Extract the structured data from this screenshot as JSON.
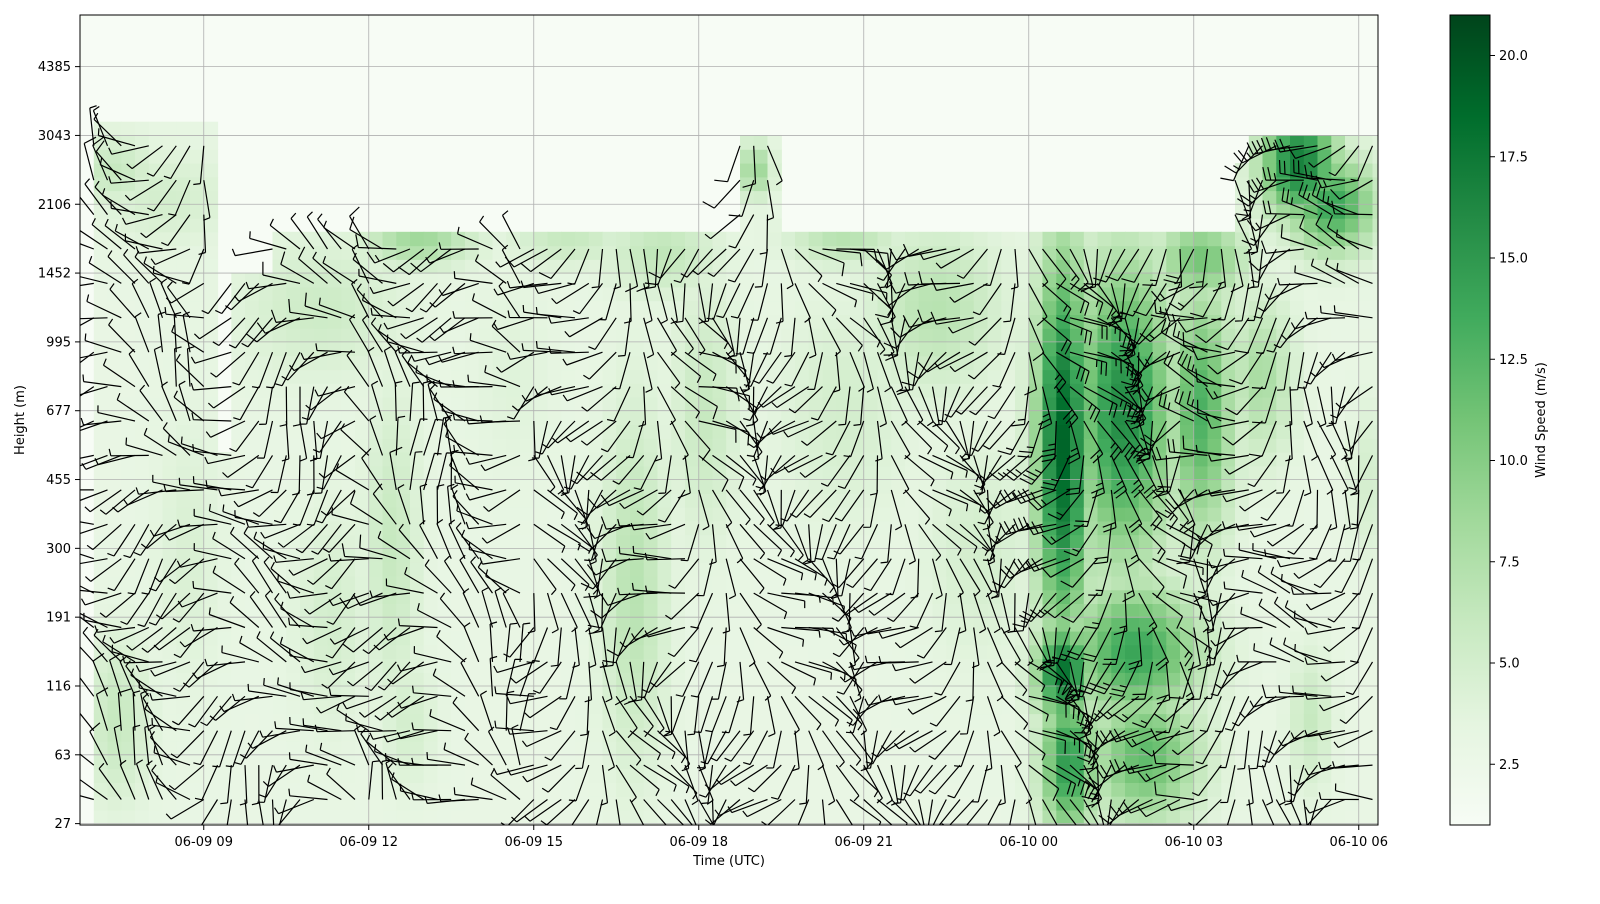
{
  "chart_data": {
    "type": "heatmap",
    "title": "",
    "xlabel": "Time (UTC)",
    "ylabel": "Height (m)",
    "x_ticks": [
      "06-09 09",
      "06-09 12",
      "06-09 15",
      "06-09 18",
      "06-09 21",
      "06-10 00",
      "06-10 03",
      "06-10 06"
    ],
    "x_tick_hours": [
      9,
      12,
      15,
      18,
      21,
      24,
      27,
      30
    ],
    "x_range_hours": [
      6.75,
      30.35
    ],
    "y_ticks": [
      "27",
      "63",
      "116",
      "191",
      "300",
      "455",
      "677",
      "995",
      "1452",
      "2106",
      "3043",
      "4385"
    ],
    "y_ticks_m": [
      27,
      63,
      116,
      191,
      300,
      455,
      677,
      995,
      1452,
      2106,
      3043,
      4385
    ],
    "y_range_index": [
      -0.02,
      11.75
    ],
    "grid": true,
    "colormap": "Greens",
    "colorbar": {
      "label": "Wind Speed (m/s)",
      "ticks": [
        "2.5",
        "5.0",
        "7.5",
        "10.0",
        "12.5",
        "15.0",
        "17.5",
        "20.0"
      ],
      "tick_values": [
        2.5,
        5.0,
        7.5,
        10.0,
        12.5,
        15.0,
        17.5,
        20.0
      ],
      "range": [
        1.0,
        21.0
      ]
    },
    "overlay": "wind barbs (direction and speed) at each time/height bin",
    "time_step_hours": 0.25,
    "wind_speed_field": {
      "data_top_index": [
        {
          "from": 6.75,
          "to": 9.1,
          "top": 10.1
        },
        {
          "from": 9.1,
          "to": 10.2,
          "top": 8.05
        },
        {
          "from": 10.2,
          "to": 18.6,
          "top": 8.65
        },
        {
          "from": 18.6,
          "to": 19.3,
          "top": 10.0
        },
        {
          "from": 19.3,
          "to": 27.6,
          "top": 8.65
        },
        {
          "from": 27.6,
          "to": 27.8,
          "top": 9.5
        },
        {
          "from": 27.8,
          "to": 30.3,
          "top": 10.05
        }
      ],
      "gaps": [
        {
          "from": 9.1,
          "to": 9.3,
          "bottom": 5.5,
          "top": 10.5
        },
        {
          "from": 27.4,
          "to": 27.5,
          "bottom": 5.5,
          "top": 8.9
        }
      ],
      "speed_blobs_ms": [
        {
          "t": 7.2,
          "h": 9.5,
          "spd": 6,
          "wt": 0.8,
          "wh": 0.5
        },
        {
          "t": 8.2,
          "h": 9.1,
          "spd": 5,
          "wt": 1.2,
          "wh": 0.7
        },
        {
          "t": 7.3,
          "h": 1.5,
          "spd": 6,
          "wt": 0.6,
          "wh": 1.2
        },
        {
          "t": 8.6,
          "h": 4.0,
          "spd": 4.5,
          "wt": 0.6,
          "wh": 2.0
        },
        {
          "t": 11.0,
          "h": 7.5,
          "spd": 5.5,
          "wt": 1.5,
          "wh": 1.0
        },
        {
          "t": 11.2,
          "h": 3.0,
          "spd": 5,
          "wt": 0.7,
          "wh": 1.6
        },
        {
          "t": 12.3,
          "h": 4.0,
          "spd": 6,
          "wt": 0.5,
          "wh": 2.2
        },
        {
          "t": 12.8,
          "h": 8.5,
          "spd": 8.5,
          "wt": 1.0,
          "wh": 0.4
        },
        {
          "t": 12.6,
          "h": 1.5,
          "spd": 5,
          "wt": 0.5,
          "wh": 1.0
        },
        {
          "t": 14.5,
          "h": 6.5,
          "spd": 4,
          "wt": 0.8,
          "wh": 1.5
        },
        {
          "t": 15.5,
          "h": 8.5,
          "spd": 6,
          "wt": 1.0,
          "wh": 0.4
        },
        {
          "t": 16.7,
          "h": 3.5,
          "spd": 7,
          "wt": 0.6,
          "wh": 2.6
        },
        {
          "t": 17.2,
          "h": 8.3,
          "spd": 6.5,
          "wt": 1.0,
          "wh": 0.6
        },
        {
          "t": 18.0,
          "h": 6.0,
          "spd": 6,
          "wt": 0.6,
          "wh": 1.8
        },
        {
          "t": 18.9,
          "h": 9.5,
          "spd": 9,
          "wt": 0.3,
          "wh": 0.4
        },
        {
          "t": 20.5,
          "h": 8.5,
          "spd": 7,
          "wt": 1.0,
          "wh": 0.4
        },
        {
          "t": 20.5,
          "h": 6.0,
          "spd": 5,
          "wt": 1.2,
          "wh": 1.6
        },
        {
          "t": 22.2,
          "h": 7.5,
          "spd": 7,
          "wt": 1.2,
          "wh": 1.2
        },
        {
          "t": 23.0,
          "h": 4.0,
          "spd": 5,
          "wt": 1.0,
          "wh": 1.6
        },
        {
          "t": 24.5,
          "h": 5.5,
          "spd": 19,
          "wt": 0.5,
          "wh": 2.8
        },
        {
          "t": 24.5,
          "h": 2.2,
          "spd": 18,
          "wt": 0.5,
          "wh": 0.7
        },
        {
          "t": 24.6,
          "h": 0.9,
          "spd": 15,
          "wt": 0.5,
          "wh": 1.1
        },
        {
          "t": 25.6,
          "h": 6.0,
          "spd": 16,
          "wt": 0.9,
          "wh": 2.2
        },
        {
          "t": 25.8,
          "h": 2.5,
          "spd": 14,
          "wt": 1.2,
          "wh": 1.0
        },
        {
          "t": 26.0,
          "h": 1.0,
          "spd": 12,
          "wt": 1.0,
          "wh": 1.0
        },
        {
          "t": 27.0,
          "h": 6.0,
          "spd": 13,
          "wt": 0.6,
          "wh": 1.8
        },
        {
          "t": 27.0,
          "h": 8.2,
          "spd": 11,
          "wt": 0.8,
          "wh": 0.6
        },
        {
          "t": 28.8,
          "h": 9.6,
          "spd": 17,
          "wt": 0.7,
          "wh": 0.8
        },
        {
          "t": 29.4,
          "h": 9.0,
          "spd": 14,
          "wt": 0.8,
          "wh": 0.7
        },
        {
          "t": 28.1,
          "h": 6.5,
          "spd": 8,
          "wt": 0.6,
          "wh": 1.2
        },
        {
          "t": 29.0,
          "h": 1.5,
          "spd": 6,
          "wt": 0.4,
          "wh": 1.0
        },
        {
          "t": 30.1,
          "h": 5.0,
          "spd": 5,
          "wt": 0.4,
          "wh": 1.2
        }
      ],
      "background_speed_ms": 3.0,
      "above_data_speed_ms": 1.0
    },
    "wind_direction_field": {
      "note": "approximate direction sketch (degrees, meteorological) for barb rendering",
      "regimes": [
        {
          "from": 6.75,
          "to": 9.0,
          "dir": 280
        },
        {
          "from": 9.0,
          "to": 12.0,
          "dir": 250
        },
        {
          "from": 12.0,
          "to": 15.0,
          "dir": 300
        },
        {
          "from": 15.0,
          "to": 18.0,
          "dir": 200
        },
        {
          "from": 18.0,
          "to": 21.0,
          "dir": 170
        },
        {
          "from": 21.0,
          "to": 24.0,
          "dir": 190
        },
        {
          "from": 24.0,
          "to": 27.0,
          "dir": 180
        },
        {
          "from": 27.0,
          "to": 30.35,
          "dir": 230
        }
      ]
    }
  }
}
